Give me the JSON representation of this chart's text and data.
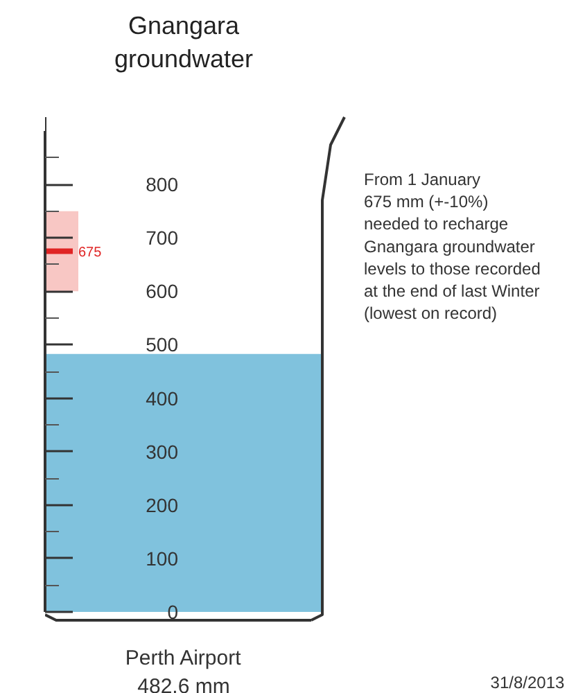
{
  "chart_data": {
    "type": "bar",
    "title": "Gnangara\ngroundwater",
    "categories": [
      "Perth Airport"
    ],
    "values": [
      482.6
    ],
    "color": "#80c2dd",
    "value_labels": [
      "482.6 mm"
    ],
    "ylim": [
      0,
      900
    ],
    "yticks": [
      0,
      {
        "value": 50,
        "label": null
      },
      100,
      {
        "value": 150,
        "label": null
      },
      200,
      {
        "value": 250,
        "label": null
      },
      300,
      {
        "value": 350,
        "label": null
      },
      400,
      {
        "value": 450,
        "label": null
      },
      500,
      {
        "value": 550,
        "label": null
      },
      600,
      {
        "value": 650,
        "label": null
      },
      700,
      {
        "value": 750,
        "label": null
      },
      800,
      {
        "value": 850,
        "label": null
      }
    ],
    "ref_lines": [
      {
        "axis": "y",
        "value": 675,
        "label": "675",
        "color": "#e02424"
      }
    ],
    "bands": [
      {
        "axis": "y",
        "from": 600,
        "to": 750,
        "color": "#e8463c"
      }
    ],
    "annotations": [
      "From 1 January\n675 mm (+-10%)\nneeded to recharge\nGnangara groundwater\nlevels to those recorded\nat the end of last Winter\n(lowest on record)",
      "31/8/2013"
    ],
    "grid": false
  }
}
